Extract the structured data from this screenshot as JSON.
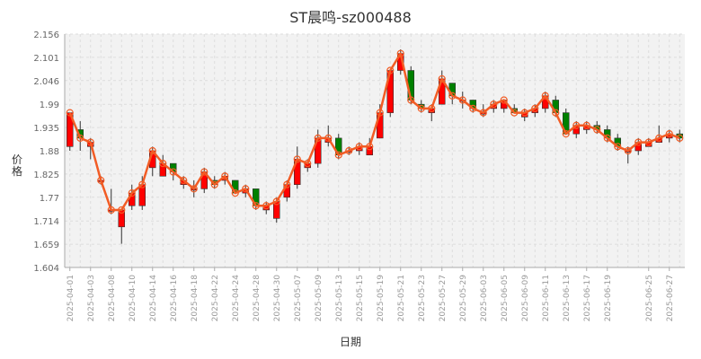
{
  "chart_data": {
    "type": "candlestick",
    "title": "ST晨鸣-sz000488",
    "xlabel": "日期",
    "ylabel": "价格",
    "ylim": [
      1.604,
      2.156
    ],
    "y_ticks": [
      "1.604",
      "1.659",
      "1.714",
      "1.77",
      "1.825",
      "1.88",
      "1.935",
      "1.99",
      "2.046",
      "2.101",
      "2.156"
    ],
    "grid": true,
    "colors": {
      "up": "#ff0000",
      "down": "#008000",
      "line": "#f25c25",
      "grid": "#dddddd",
      "plot_bg": "#f2f2f2"
    },
    "x_tick_labels": [
      "2025-04-01",
      "2025-04-03",
      "2025-04-08",
      "2025-04-10",
      "2025-04-14",
      "2025-04-16",
      "2025-04-18",
      "2025-04-22",
      "2025-04-24",
      "2025-04-28",
      "2025-04-30",
      "2025-05-07",
      "2025-05-09",
      "2025-05-13",
      "2025-05-15",
      "2025-05-19",
      "2025-05-21",
      "2025-05-23",
      "2025-05-27",
      "2025-05-29",
      "2025-06-03",
      "2025-06-05",
      "2025-06-09",
      "2025-06-11",
      "2025-06-13",
      "2025-06-17",
      "2025-06-19",
      "2025-06-25",
      "2025-06-27"
    ],
    "x": [
      "2025-04-01",
      "2025-04-02",
      "2025-04-03",
      "2025-04-07",
      "2025-04-08",
      "2025-04-09",
      "2025-04-10",
      "2025-04-11",
      "2025-04-14",
      "2025-04-15",
      "2025-04-16",
      "2025-04-17",
      "2025-04-18",
      "2025-04-21",
      "2025-04-22",
      "2025-04-23",
      "2025-04-24",
      "2025-04-25",
      "2025-04-28",
      "2025-04-29",
      "2025-04-30",
      "2025-05-06",
      "2025-05-07",
      "2025-05-08",
      "2025-05-09",
      "2025-05-12",
      "2025-05-13",
      "2025-05-14",
      "2025-05-15",
      "2025-05-16",
      "2025-05-19",
      "2025-05-20",
      "2025-05-21",
      "2025-05-22",
      "2025-05-23",
      "2025-05-26",
      "2025-05-27",
      "2025-05-28",
      "2025-05-29",
      "2025-05-30",
      "2025-06-03",
      "2025-06-04",
      "2025-06-05",
      "2025-06-06",
      "2025-06-09",
      "2025-06-10",
      "2025-06-11",
      "2025-06-12",
      "2025-06-13",
      "2025-06-16",
      "2025-06-17",
      "2025-06-18",
      "2025-06-19",
      "2025-06-20",
      "2025-06-23",
      "2025-06-24",
      "2025-06-25",
      "2025-06-26",
      "2025-06-27",
      "2025-06-30"
    ],
    "ohlc": [
      [
        1.89,
        1.97,
        1.88,
        1.97
      ],
      [
        1.93,
        1.95,
        1.88,
        1.91
      ],
      [
        1.89,
        1.91,
        1.86,
        1.9
      ],
      [
        1.81,
        1.82,
        1.8,
        1.81
      ],
      [
        1.74,
        1.79,
        1.73,
        1.74
      ],
      [
        1.7,
        1.74,
        1.66,
        1.74
      ],
      [
        1.75,
        1.8,
        1.74,
        1.78
      ],
      [
        1.75,
        1.82,
        1.74,
        1.8
      ],
      [
        1.84,
        1.89,
        1.82,
        1.88
      ],
      [
        1.82,
        1.87,
        1.82,
        1.85
      ],
      [
        1.85,
        1.85,
        1.81,
        1.83
      ],
      [
        1.8,
        1.82,
        1.79,
        1.81
      ],
      [
        1.79,
        1.81,
        1.77,
        1.79
      ],
      [
        1.79,
        1.84,
        1.78,
        1.83
      ],
      [
        1.81,
        1.82,
        1.79,
        1.8
      ],
      [
        1.81,
        1.83,
        1.8,
        1.82
      ],
      [
        1.81,
        1.81,
        1.78,
        1.78
      ],
      [
        1.78,
        1.8,
        1.77,
        1.79
      ],
      [
        1.79,
        1.79,
        1.74,
        1.75
      ],
      [
        1.74,
        1.76,
        1.73,
        1.75
      ],
      [
        1.72,
        1.77,
        1.71,
        1.76
      ],
      [
        1.77,
        1.81,
        1.76,
        1.8
      ],
      [
        1.8,
        1.89,
        1.79,
        1.86
      ],
      [
        1.84,
        1.86,
        1.83,
        1.85
      ],
      [
        1.85,
        1.93,
        1.84,
        1.91
      ],
      [
        1.9,
        1.94,
        1.89,
        1.91
      ],
      [
        1.91,
        1.92,
        1.86,
        1.87
      ],
      [
        1.88,
        1.89,
        1.87,
        1.88
      ],
      [
        1.88,
        1.9,
        1.87,
        1.89
      ],
      [
        1.87,
        1.91,
        1.87,
        1.89
      ],
      [
        1.91,
        1.99,
        1.91,
        1.97
      ],
      [
        1.97,
        2.07,
        1.96,
        2.07
      ],
      [
        2.07,
        2.12,
        2.06,
        2.11
      ],
      [
        2.07,
        2.08,
        1.99,
        2.0
      ],
      [
        1.99,
        2.0,
        1.97,
        1.98
      ],
      [
        1.97,
        1.99,
        1.95,
        1.98
      ],
      [
        1.99,
        2.07,
        1.99,
        2.05
      ],
      [
        2.04,
        2.04,
        1.99,
        2.01
      ],
      [
        2.0,
        2.02,
        1.98,
        2.0
      ],
      [
        2.0,
        2.0,
        1.97,
        1.98
      ],
      [
        1.97,
        1.99,
        1.96,
        1.97
      ],
      [
        1.98,
        2.0,
        1.97,
        1.99
      ],
      [
        1.98,
        2.0,
        1.97,
        2.0
      ],
      [
        1.98,
        1.99,
        1.97,
        1.97
      ],
      [
        1.96,
        1.98,
        1.95,
        1.97
      ],
      [
        1.97,
        1.99,
        1.96,
        1.98
      ],
      [
        1.98,
        2.02,
        1.97,
        2.01
      ],
      [
        2.0,
        2.01,
        1.96,
        1.97
      ],
      [
        1.97,
        1.98,
        1.92,
        1.92
      ],
      [
        1.92,
        1.95,
        1.91,
        1.94
      ],
      [
        1.93,
        1.95,
        1.92,
        1.94
      ],
      [
        1.94,
        1.95,
        1.92,
        1.93
      ],
      [
        1.93,
        1.94,
        1.9,
        1.91
      ],
      [
        1.91,
        1.92,
        1.88,
        1.89
      ],
      [
        1.88,
        1.89,
        1.85,
        1.88
      ],
      [
        1.88,
        1.91,
        1.87,
        1.9
      ],
      [
        1.89,
        1.91,
        1.89,
        1.9
      ],
      [
        1.9,
        1.94,
        1.9,
        1.91
      ],
      [
        1.91,
        1.93,
        1.9,
        1.92
      ],
      [
        1.92,
        1.93,
        1.9,
        1.91
      ]
    ]
  }
}
